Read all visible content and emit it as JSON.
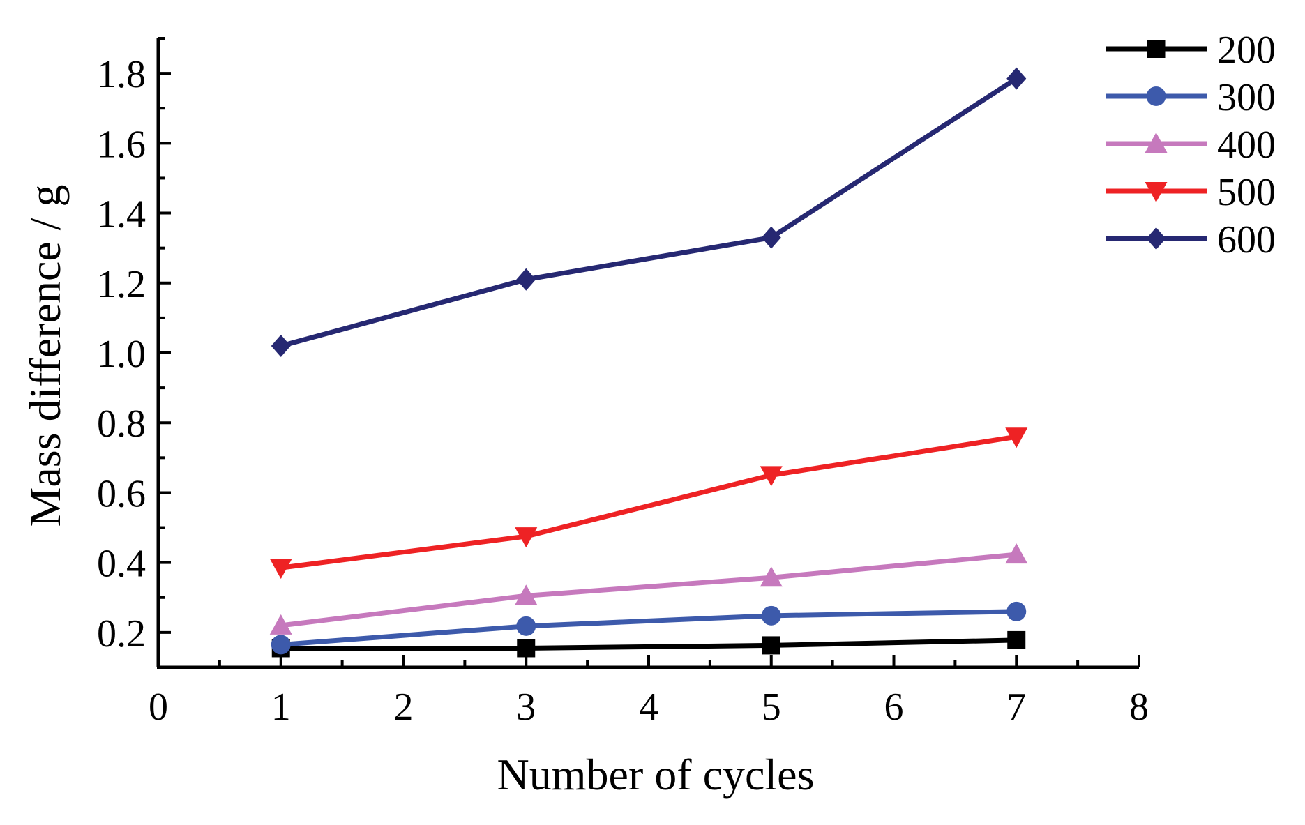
{
  "chart_data": {
    "type": "line",
    "xlabel": "Number of cycles",
    "ylabel": "Mass difference / g",
    "xlim": [
      0,
      8
    ],
    "ylim": [
      0.1,
      1.9
    ],
    "x_ticks": [
      "0",
      "1",
      "2",
      "3",
      "4",
      "5",
      "6",
      "7",
      "8"
    ],
    "y_ticks": [
      "0.2",
      "0.4",
      "0.6",
      "0.8",
      "1.0",
      "1.2",
      "1.4",
      "1.6",
      "1.8"
    ],
    "x": [
      1,
      3,
      5,
      7
    ],
    "series": [
      {
        "name": "200",
        "color": "#000000",
        "marker": "square",
        "values": [
          0.155,
          0.155,
          0.163,
          0.178
        ]
      },
      {
        "name": "300",
        "color": "#3d5aab",
        "marker": "circle",
        "values": [
          0.165,
          0.218,
          0.248,
          0.26
        ]
      },
      {
        "name": "400",
        "color": "#c679bd",
        "marker": "triangle-up",
        "values": [
          0.22,
          0.305,
          0.357,
          0.423
        ]
      },
      {
        "name": "500",
        "color": "#ee2224",
        "marker": "triangle-down",
        "values": [
          0.385,
          0.475,
          0.65,
          0.76
        ]
      },
      {
        "name": "600",
        "color": "#262872",
        "marker": "diamond",
        "values": [
          1.02,
          1.21,
          1.33,
          1.785
        ]
      }
    ],
    "grid": false,
    "legend_position": "top-right"
  }
}
